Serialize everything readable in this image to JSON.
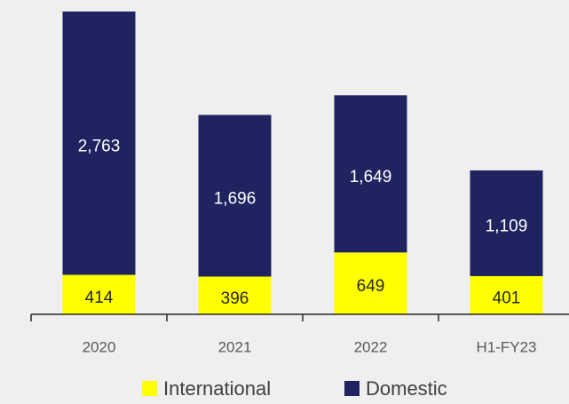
{
  "chart_data": {
    "type": "stacked_bar",
    "categories": [
      "2020",
      "2021",
      "2022",
      "H1-FY23"
    ],
    "series": [
      {
        "name": "International",
        "color": "#ffff00",
        "values": [
          414,
          396,
          649,
          401
        ]
      },
      {
        "name": "Domestic",
        "color": "#1f2460",
        "values": [
          2763,
          1696,
          1649,
          1109
        ],
        "value_labels": [
          "2,763",
          "1,696",
          "1,649",
          "1,109"
        ]
      }
    ],
    "ylim": [
      0,
      3200
    ],
    "legend": "bottom"
  }
}
